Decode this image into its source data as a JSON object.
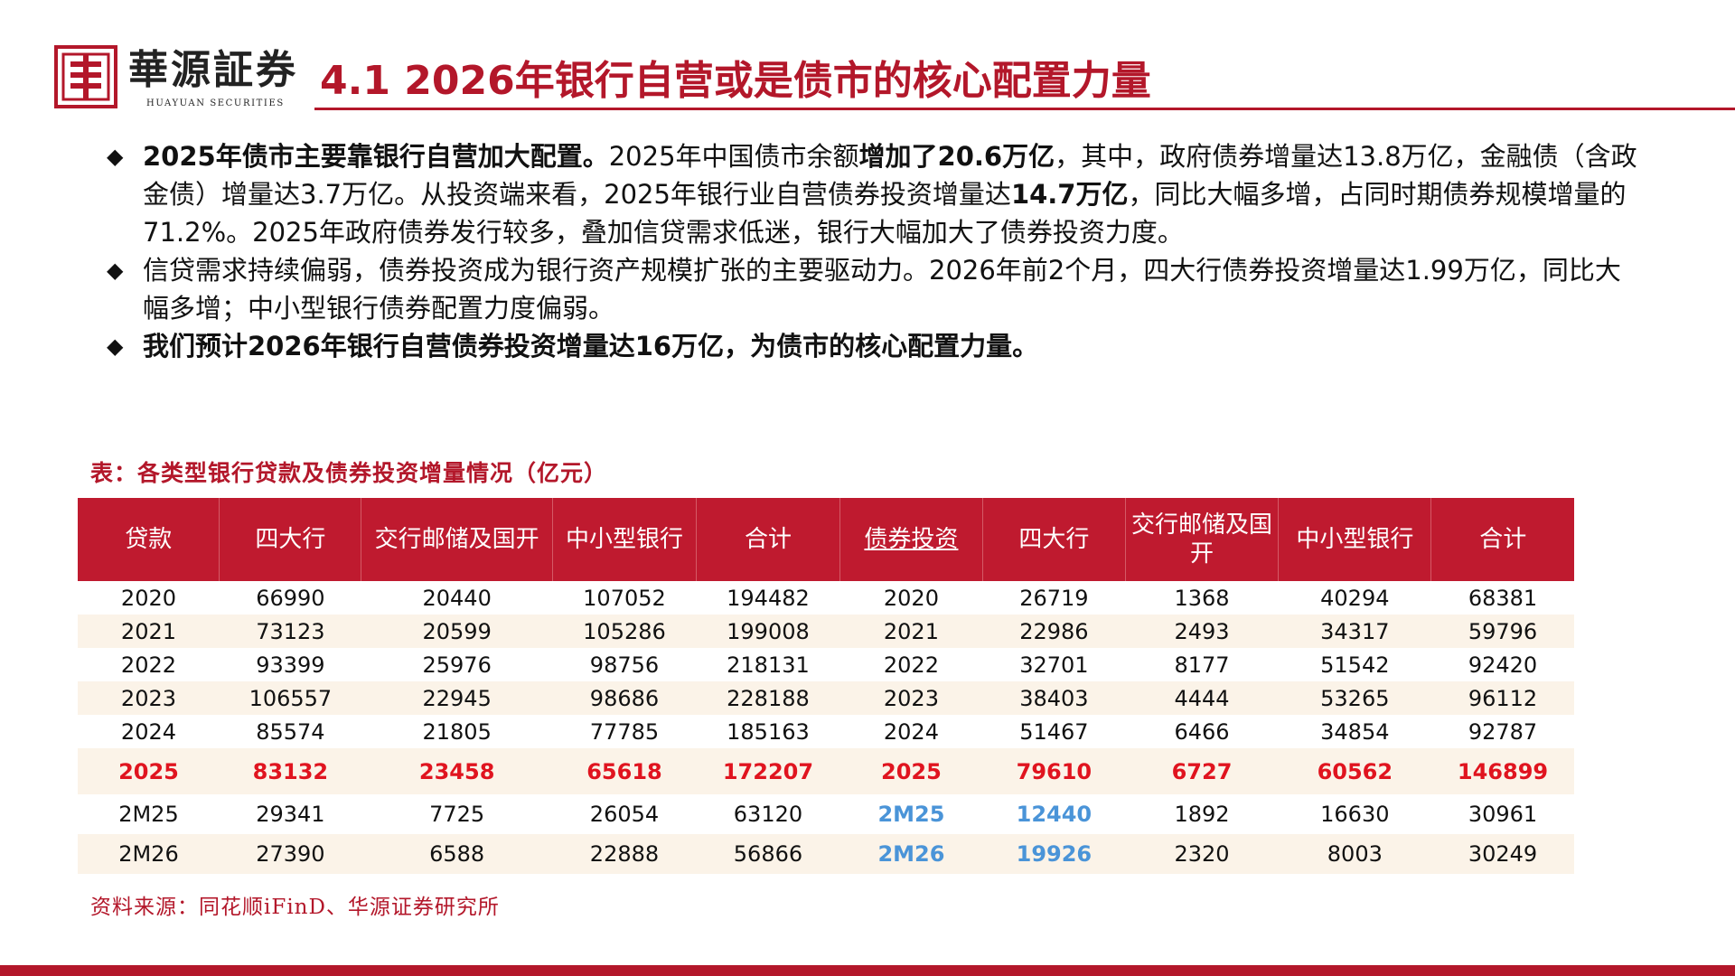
{
  "brand": {
    "name_cn": "華源証券",
    "name_en": "HUAYUAN SECURITIES",
    "color": "#b3172a"
  },
  "page_title": "4.1  2026年银行自营或是债市的核心配置力量",
  "bullets": [
    {
      "icon": "diamond-icon",
      "segments": [
        {
          "text": "2025年债市主要靠银行自营加大配置。",
          "bold": true
        },
        {
          "text": "2025年中国债市余额",
          "bold": false
        },
        {
          "text": "增加了20.6万亿",
          "bold": true
        },
        {
          "text": "，其中，政府债券增量达13.8万亿，金融债（含政金债）增量达3.7万亿。从投资端来看，2025年银行业自营债券投资增量达",
          "bold": false
        },
        {
          "text": "14.7万亿",
          "bold": true
        },
        {
          "text": "，同比大幅多增，占同时期债券规模增量的71.2%。2025年政府债券发行较多，叠加信贷需求低迷，银行大幅加大了债券投资力度。",
          "bold": false
        }
      ]
    },
    {
      "icon": "diamond-icon",
      "segments": [
        {
          "text": "信贷需求持续偏弱，债券投资成为银行资产规模扩张的主要驱动力。2026年前2个月，四大行债券投资增量达1.99万亿，同比大幅多增；中小型银行债券配置力度偏弱。",
          "bold": false
        }
      ]
    },
    {
      "icon": "diamond-icon",
      "segments": [
        {
          "text": "我们预计2026年银行自营债券投资增量达16万亿，为债市的核心配置力量。",
          "bold": true
        }
      ]
    }
  ],
  "table": {
    "caption": "表：各类型银行贷款及债券投资增量情况（亿元）",
    "headers": [
      "贷款",
      "四大行",
      "交行邮储及国开",
      "中小型银行",
      "合计",
      "债券投资",
      "四大行",
      "交行邮储及国开",
      "中小型银行",
      "合计"
    ],
    "rows": [
      [
        "2020",
        "66990",
        "20440",
        "107052",
        "194482",
        "2020",
        "26719",
        "1368",
        "40294",
        "68381"
      ],
      [
        "2021",
        "73123",
        "20599",
        "105286",
        "199008",
        "2021",
        "22986",
        "2493",
        "34317",
        "59796"
      ],
      [
        "2022",
        "93399",
        "25976",
        "98756",
        "218131",
        "2022",
        "32701",
        "8177",
        "51542",
        "92420"
      ],
      [
        "2023",
        "106557",
        "22945",
        "98686",
        "228188",
        "2023",
        "38403",
        "4444",
        "53265",
        "96112"
      ],
      [
        "2024",
        "85574",
        "21805",
        "77785",
        "185163",
        "2024",
        "51467",
        "6466",
        "34854",
        "92787"
      ],
      [
        "2025",
        "83132",
        "23458",
        "65618",
        "172207",
        "2025",
        "79610",
        "6727",
        "60562",
        "146899"
      ],
      [
        "2M25",
        "29341",
        "7725",
        "26054",
        "63120",
        "2M25",
        "12440",
        "1892",
        "16630",
        "30961"
      ],
      [
        "2M26",
        "27390",
        "6588",
        "22888",
        "56866",
        "2M26",
        "19926",
        "2320",
        "8003",
        "30249"
      ]
    ],
    "highlight_color": "#e0141f",
    "blue_color": "#4a94d8",
    "header_color": "#bf1a2f"
  },
  "source": "资料来源：同花顺iFinD、华源证券研究所"
}
